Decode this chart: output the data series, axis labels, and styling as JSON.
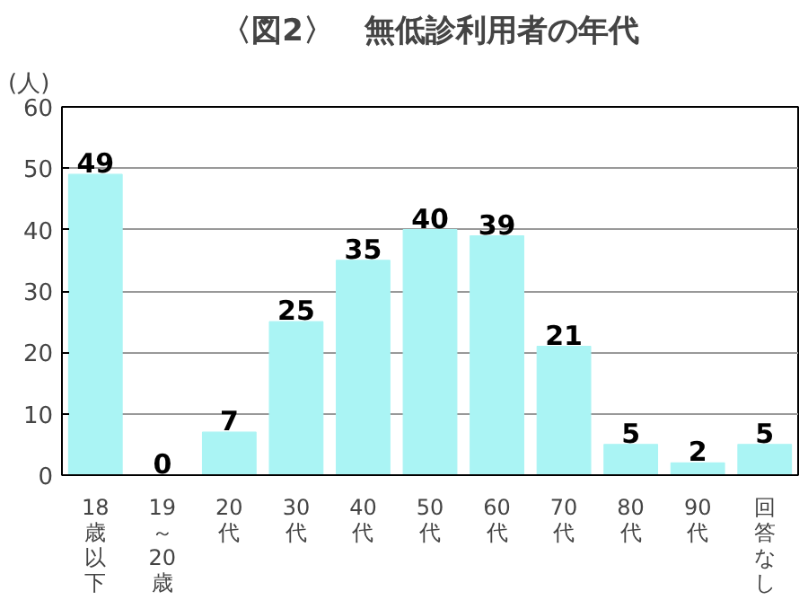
{
  "chart_data": {
    "type": "bar",
    "title": "〈図2〉　無低診利用者の年代",
    "ylabel": "(人)",
    "categories": [
      "18歳以下",
      "19～20歳",
      "20代",
      "30代",
      "40代",
      "50代",
      "60代",
      "70代",
      "80代",
      "90代",
      "回答なし"
    ],
    "values": [
      49,
      0,
      7,
      25,
      35,
      40,
      39,
      21,
      5,
      2,
      5
    ],
    "color": "#aaf4f4",
    "ylim": [
      0,
      60
    ],
    "yticks": [
      0,
      10,
      20,
      30,
      40,
      50,
      60
    ],
    "grid": "y",
    "data_labels": true
  }
}
